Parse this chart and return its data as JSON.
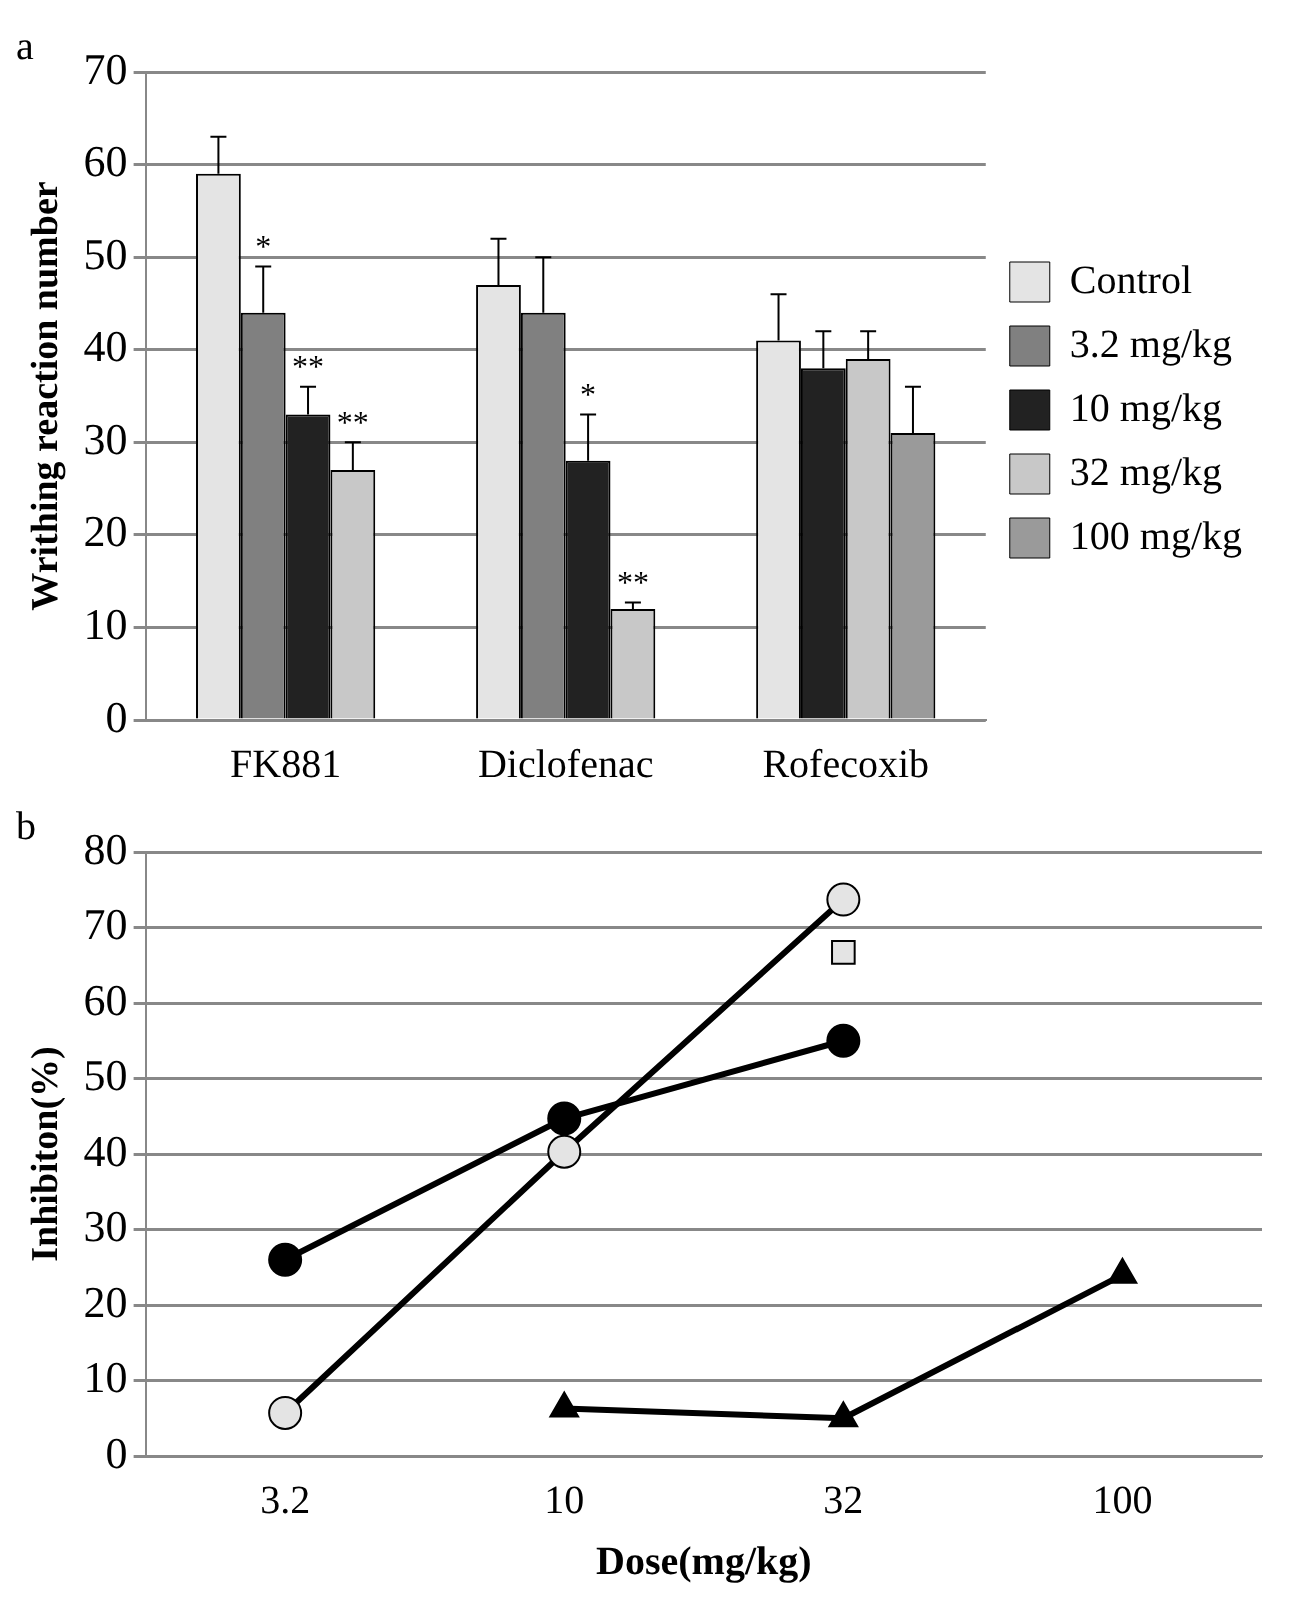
{
  "chart_data": [
    {
      "type": "bar",
      "title": "a",
      "ylabel": "Writhing reaction number",
      "categories": [
        "FK881",
        "Diclofenac",
        "Rofecoxib"
      ],
      "ylim": [
        0,
        70
      ],
      "yticks": [
        0,
        10,
        20,
        30,
        40,
        50,
        60,
        70
      ],
      "grid": "y",
      "legend": "right",
      "series": [
        {
          "name": "Control",
          "color": "#e4e4e4",
          "values": [
            59,
            47,
            41
          ],
          "errors": [
            [
              59,
              63
            ],
            [
              47,
              52
            ],
            [
              41,
              46
            ]
          ]
        },
        {
          "name": "3.2 mg/kg",
          "color": "#808080",
          "values": [
            44,
            44,
            null
          ],
          "errors": [
            [
              44,
              49
            ],
            [
              44,
              50
            ],
            null
          ],
          "value_labels": [
            "*",
            null,
            null
          ]
        },
        {
          "name": "10 mg/kg",
          "color": "#222222",
          "values": [
            33,
            28,
            38
          ],
          "errors": [
            [
              33,
              36
            ],
            [
              28,
              33
            ],
            [
              38,
              42
            ]
          ],
          "value_labels": [
            "**",
            "*",
            null
          ]
        },
        {
          "name": "32 mg/kg",
          "color": "#c8c8c8",
          "values": [
            27,
            12,
            39
          ],
          "errors": [
            [
              27,
              30
            ],
            [
              12,
              12.7
            ],
            [
              39,
              42
            ]
          ],
          "value_labels": [
            "**",
            "**",
            null
          ]
        },
        {
          "name": "100 mg/kg",
          "color": "#9a9a9a",
          "values": [
            null,
            null,
            31
          ],
          "errors": [
            null,
            null,
            [
              31,
              36
            ]
          ]
        }
      ]
    },
    {
      "type": "line",
      "title": "b",
      "xlabel": "Dose(mg/kg)",
      "ylabel": "Inhibiton(%)",
      "categories": [
        "3.2",
        "10",
        "32",
        "100"
      ],
      "ylim": [
        0,
        80
      ],
      "yticks": [
        0,
        10,
        20,
        30,
        40,
        50,
        60,
        70,
        80
      ],
      "grid": "y",
      "line_style": "solid",
      "series": [
        {
          "color": "#000000",
          "marker": "circle",
          "values": [
            26,
            44.7,
            55,
            null
          ]
        },
        {
          "color": "#e4e4e4",
          "marker": "circle",
          "values": [
            5.7,
            40.3,
            73.7,
            null
          ]
        },
        {
          "type": "scatter",
          "color": "#e4e4e4",
          "marker": "square",
          "values": [
            null,
            null,
            66.7,
            null
          ]
        },
        {
          "color": "#000000",
          "marker": "triangle",
          "values": [
            null,
            6.3,
            5,
            24
          ]
        }
      ]
    }
  ]
}
